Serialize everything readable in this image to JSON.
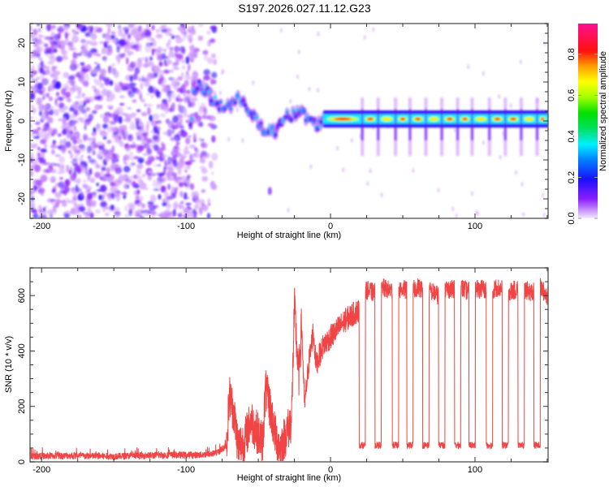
{
  "figure": {
    "title": "S197.2026.027.11.12.G23"
  },
  "chart_data": [
    {
      "type": "heatmap",
      "name": "spectrogram",
      "xlabel": "Height of straight line (km)",
      "ylabel": "Frequency (Hz)",
      "xlim": [
        -208,
        150.6
      ],
      "ylim": [
        -25,
        25
      ],
      "xticks": [
        -200,
        -100,
        0,
        100
      ],
      "yticks": [
        -20,
        -10,
        0,
        10,
        20
      ],
      "colorbar": {
        "label": "Normalized spectral amplitude",
        "range": [
          0,
          0.95
        ],
        "ticks": [
          0.0,
          0.2,
          0.4,
          0.6,
          0.8
        ],
        "colormap": [
          "#f4eafc",
          "#9b30ff",
          "#1a10ff",
          "#00c0ff",
          "#00ffff",
          "#00e000",
          "#c8ff00",
          "#ffff00",
          "#ffa000",
          "#ff0000",
          "#ff1090"
        ]
      },
      "features": {
        "noise_region_x": [
          -208,
          -80
        ],
        "transition_region_x": [
          -95,
          -5
        ],
        "carrier_track": [
          {
            "x": -95,
            "f": 8
          },
          {
            "x": -90,
            "f": 9
          },
          {
            "x": -85,
            "f": 7
          },
          {
            "x": -80,
            "f": 5
          },
          {
            "x": -75,
            "f": 4
          },
          {
            "x": -70,
            "f": 3
          },
          {
            "x": -65,
            "f": 6
          },
          {
            "x": -60,
            "f": 4
          },
          {
            "x": -55,
            "f": 1
          },
          {
            "x": -50,
            "f": 0
          },
          {
            "x": -45,
            "f": -2
          },
          {
            "x": -40,
            "f": -3
          },
          {
            "x": -35,
            "f": -1
          },
          {
            "x": -30,
            "f": 1
          },
          {
            "x": -25,
            "f": 2
          },
          {
            "x": -20,
            "f": 3
          },
          {
            "x": -15,
            "f": 0
          },
          {
            "x": -10,
            "f": -1
          },
          {
            "x": -5,
            "f": 0
          },
          {
            "x": 0,
            "f": 0.5
          },
          {
            "x": 150,
            "f": 0.5
          }
        ],
        "stable_carrier_freq_hz": 0.5,
        "periodic_dropout_x": [
          22,
          33,
          45,
          55,
          66,
          77,
          88,
          98,
          110,
          121,
          132,
          143
        ]
      }
    },
    {
      "type": "line",
      "name": "snr",
      "xlabel": "Height of straight line (km)",
      "ylabel": "SNR (10 * v/v)",
      "xlim": [
        -208,
        150.6
      ],
      "ylim": [
        0,
        700
      ],
      "xticks": [
        -200,
        -100,
        0,
        100
      ],
      "yticks": [
        0,
        200,
        400,
        600
      ],
      "color": "#f03030",
      "series": [
        {
          "name": "SNR",
          "x": [
            -208,
            -180,
            -150,
            -120,
            -90,
            -80,
            -75,
            -72,
            -70,
            -67,
            -64,
            -60,
            -55,
            -50,
            -47,
            -45,
            -42,
            -38,
            -35,
            -30,
            -27,
            -25,
            -22,
            -20,
            -18,
            -15,
            -12,
            -10,
            -8,
            -5,
            0,
            5,
            10,
            15,
            20,
            22,
            25,
            30,
            35,
            40,
            45,
            50,
            55,
            60,
            65,
            70,
            75,
            80,
            85,
            90,
            95,
            100,
            105,
            110,
            115,
            120,
            125,
            130,
            135,
            140,
            145,
            150
          ],
          "y": [
            20,
            22,
            20,
            24,
            25,
            30,
            45,
            60,
            240,
            180,
            60,
            70,
            150,
            100,
            70,
            260,
            200,
            90,
            50,
            110,
            150,
            560,
            300,
            500,
            200,
            360,
            470,
            350,
            380,
            420,
            450,
            480,
            510,
            530,
            550,
            590,
            620,
            610,
            630,
            620,
            615,
            625,
            610,
            630,
            620,
            615,
            600,
            625,
            620,
            630,
            615,
            620,
            625,
            610,
            630,
            620,
            615,
            625,
            620,
            610,
            630,
            600
          ]
        }
      ],
      "dropouts": {
        "x": [
          22,
          33,
          45,
          55,
          66,
          77,
          88,
          98,
          110,
          121,
          132,
          143
        ],
        "low_value": 60
      },
      "noise_floor": 20
    }
  ]
}
